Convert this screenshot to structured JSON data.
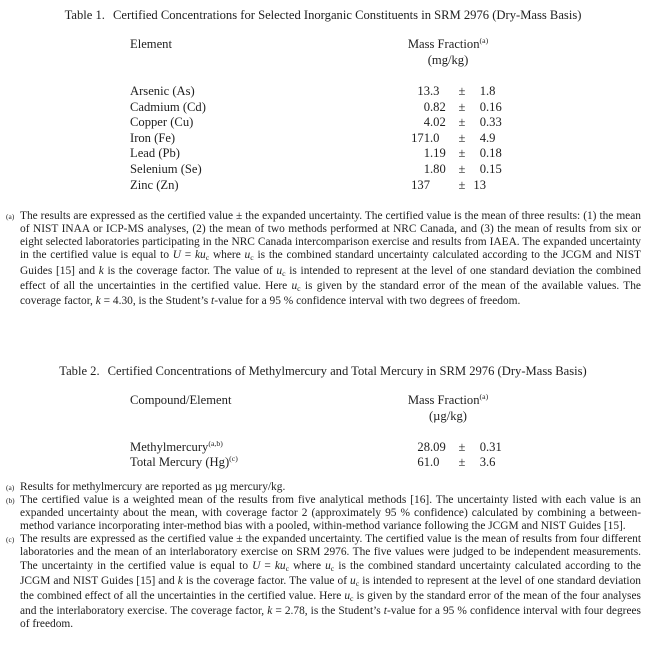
{
  "page": {
    "background": "#ffffff",
    "text_color": "#1e1e1e"
  },
  "table1": {
    "label": "Table 1.",
    "title": "Certified Concentrations for Selected Inorganic Constituents in SRM 2976 (Dry-Mass Basis)",
    "col1_header": "Element",
    "col2_header": "Mass Fraction",
    "col2_sup": "(a)",
    "col2_unit": "(mg/kg)",
    "pm": "±",
    "rows": [
      {
        "label": "Arsenic (As)",
        "sup": "",
        "value": "13.3",
        "unc": "1.8"
      },
      {
        "label": "Cadmium (Cd)",
        "sup": "",
        "value": "0.82",
        "unc": "0.16"
      },
      {
        "label": "Copper (Cu)",
        "sup": "",
        "value": "4.02",
        "unc": "0.33"
      },
      {
        "label": "Iron (Fe)",
        "sup": "",
        "value": "171.0",
        "unc": "4.9"
      },
      {
        "label": "Lead (Pb)",
        "sup": "",
        "value": "1.19",
        "unc": "0.18"
      },
      {
        "label": "Selenium (Se)",
        "sup": "",
        "value": "1.80",
        "unc": "0.15"
      },
      {
        "label": "Zinc (Zn)",
        "sup": "",
        "value": "137",
        "unc": "13"
      }
    ],
    "footnotes": [
      {
        "marker": "(a)",
        "segments": [
          {
            "t": "The results are expressed as the certified value ± the expanded uncertainty.  The certified value is the mean of three results: (1) the mean of NIST INAA or ICP-MS analyses, (2) the mean of two methods performed at NRC Canada, and (3) the mean of results from six or eight selected laboratories participating in the NRC Canada intercomparison exercise and results from IAEA.  The expanded uncertainty in the certified value is equal to "
          },
          {
            "t": "U",
            "s": "i"
          },
          {
            "t": " = "
          },
          {
            "t": "ku",
            "s": "i"
          },
          {
            "t": "c",
            "s": "sub"
          },
          {
            "t": " where "
          },
          {
            "t": "u",
            "s": "i"
          },
          {
            "t": "c",
            "s": "sub"
          },
          {
            "t": " is the combined standard uncertainty calculated according to the JCGM and NIST Guides [15] and "
          },
          {
            "t": "k",
            "s": "i"
          },
          {
            "t": " is the coverage factor.  The value of "
          },
          {
            "t": "u",
            "s": "i"
          },
          {
            "t": "c",
            "s": "sub"
          },
          {
            "t": " is intended to represent at the level of one standard deviation the combined effect of all the uncertainties in the certified value. Here "
          },
          {
            "t": "u",
            "s": "i"
          },
          {
            "t": "c",
            "s": "sub"
          },
          {
            "t": " is given by the standard error of the mean of the available values.  The coverage factor, "
          },
          {
            "t": "k",
            "s": "i"
          },
          {
            "t": " = 4.30, is the Student’s "
          },
          {
            "t": "t",
            "s": "i"
          },
          {
            "t": "-value for a 95 % confidence interval with two degrees of freedom."
          }
        ]
      }
    ]
  },
  "table2": {
    "label": "Table 2.",
    "title": "Certified Concentrations of Methylmercury and Total Mercury in SRM 2976 (Dry-Mass Basis)",
    "col1_header": "Compound/Element",
    "col2_header": "Mass Fraction",
    "col2_sup": "(a)",
    "col2_unit": "(µg/kg)",
    "pm": "±",
    "rows": [
      {
        "label": "Methylmercury",
        "sup": "(a,b)",
        "value": "28.09",
        "unc": "0.31"
      },
      {
        "label": "Total Mercury (Hg)",
        "sup": "(c)",
        "value": "61.0",
        "unc": "3.6"
      }
    ],
    "footnotes": [
      {
        "marker": "(a)",
        "segments": [
          {
            "t": "Results for methylmercury are reported as µg mercury/kg."
          }
        ]
      },
      {
        "marker": "(b)",
        "segments": [
          {
            "t": "The certified value is a weighted mean of the results from five analytical methods [16].  The uncertainty listed with each value is an expanded uncertainty about the mean, with coverage factor 2 (approximately 95 % confidence) calculated by combining a between-method variance incorporating inter-method bias with a pooled, within-method variance following the JCGM and NIST Guides [15]."
          }
        ]
      },
      {
        "marker": "(c)",
        "segments": [
          {
            "t": "The results are expressed as the certified value ± the expanded uncertainty.  The certified value is the mean of results from four different laboratories and the mean of an interlaboratory exercise on SRM 2976. The five values were judged to be independent measurements. The uncertainty in the certified value is equal to "
          },
          {
            "t": "U",
            "s": "i"
          },
          {
            "t": " = "
          },
          {
            "t": "ku",
            "s": "i"
          },
          {
            "t": "c",
            "s": "sub"
          },
          {
            "t": " where "
          },
          {
            "t": "u",
            "s": "i"
          },
          {
            "t": "c",
            "s": "sub"
          },
          {
            "t": " is the combined standard uncertainty calculated according to the JCGM and NIST Guides [15] and "
          },
          {
            "t": "k",
            "s": "i"
          },
          {
            "t": " is the coverage factor.  The value of "
          },
          {
            "t": "u",
            "s": "i"
          },
          {
            "t": "c",
            "s": "sub"
          },
          {
            "t": " is intended to represent at the level of one standard deviation the combined effect of all the uncertainties in the certified value. Here "
          },
          {
            "t": "u",
            "s": "i"
          },
          {
            "t": "c",
            "s": "sub"
          },
          {
            "t": " is given by the standard error of the mean of the four analyses and the interlaboratory exercise. The coverage factor, "
          },
          {
            "t": "k",
            "s": "i"
          },
          {
            "t": " = 2.78, is the Student’s "
          },
          {
            "t": "t",
            "s": "i"
          },
          {
            "t": "-value for a 95 % confidence interval with four degrees of freedom."
          }
        ]
      }
    ]
  }
}
